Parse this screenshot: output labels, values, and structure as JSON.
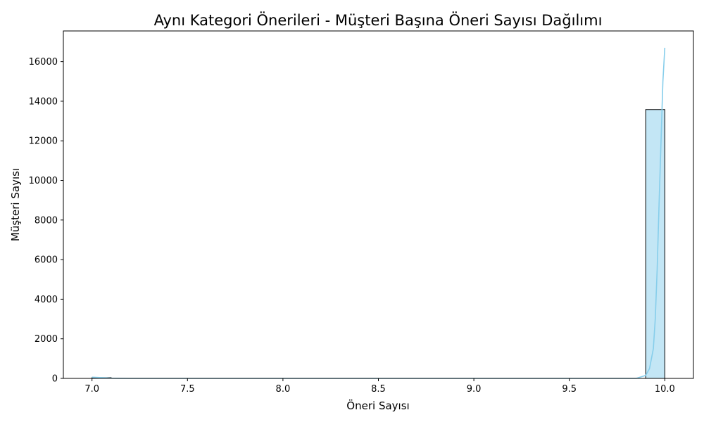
{
  "chart_data": {
    "type": "bar",
    "title": "Aynı Kategori Önerileri - Müşteri Başına Öneri Sayısı Dağılımı",
    "xlabel": "Öneri Sayısı",
    "ylabel": "Müşteri Sayısı",
    "xlim": [
      6.85,
      10.15
    ],
    "ylim": [
      0,
      17550
    ],
    "x_ticks": [
      7.0,
      7.5,
      8.0,
      8.5,
      9.0,
      9.5,
      10.0
    ],
    "x_tick_labels": [
      "7.0",
      "7.5",
      "8.0",
      "8.5",
      "9.0",
      "9.5",
      "10.0"
    ],
    "y_ticks": [
      0,
      2000,
      4000,
      6000,
      8000,
      10000,
      12000,
      14000,
      16000
    ],
    "y_tick_labels": [
      "0",
      "2000",
      "4000",
      "6000",
      "8000",
      "10000",
      "12000",
      "14000",
      "16000"
    ],
    "grid": false,
    "bins": [
      {
        "x0": 7.0,
        "x1": 7.1,
        "value": 40
      },
      {
        "x0": 9.9,
        "x1": 10.0,
        "value": 13580
      }
    ],
    "kde": {
      "x": [
        7.0,
        7.05,
        7.1,
        7.2,
        7.5,
        8.0,
        8.5,
        9.0,
        9.5,
        9.85,
        9.9,
        9.92,
        9.94,
        9.95,
        9.96,
        9.97,
        9.98,
        9.99,
        10.0
      ],
      "y": [
        60,
        40,
        10,
        0,
        0,
        0,
        0,
        0,
        0,
        0,
        150,
        500,
        1500,
        3000,
        5500,
        8800,
        11900,
        15000,
        16700
      ]
    },
    "colors": {
      "bar_fill": "#87ceeb",
      "bar_edge": "#000000",
      "kde_line": "#87ceeb"
    }
  }
}
